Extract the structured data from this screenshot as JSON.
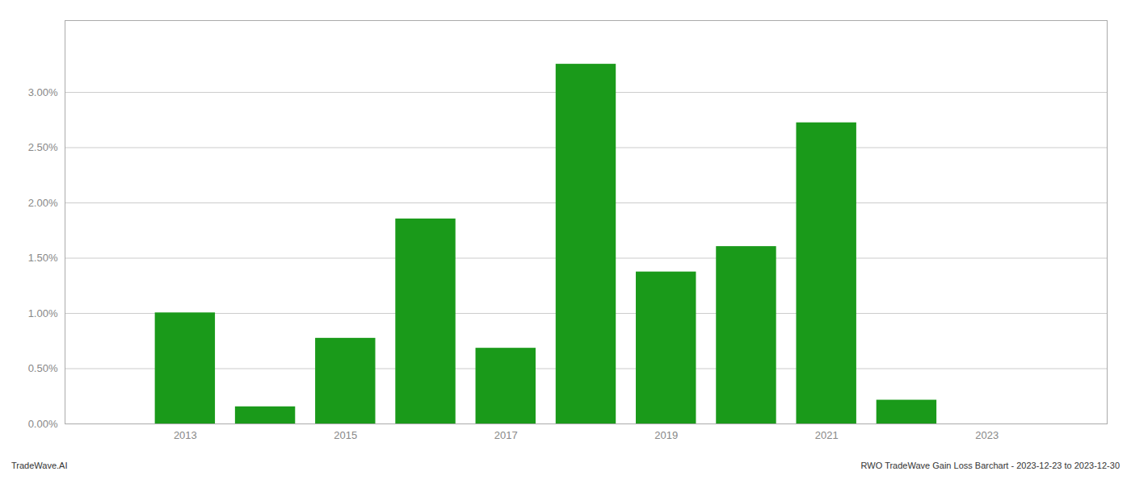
{
  "chart_data": {
    "type": "bar",
    "x": [
      2013,
      2014,
      2015,
      2016,
      2017,
      2018,
      2019,
      2020,
      2021,
      2022,
      2023
    ],
    "values": [
      0.01005,
      0.00155,
      0.00775,
      0.01855,
      0.00685,
      0.03255,
      0.01375,
      0.01605,
      0.02725,
      0.00215,
      0.0
    ],
    "color": "#1a9a1a",
    "xlim": [
      2011.5,
      2024.5
    ],
    "xticks": [
      2013,
      2015,
      2017,
      2019,
      2021,
      2023
    ],
    "ylim": [
      0,
      0.0365
    ],
    "yticks": [
      {
        "value": 0.0,
        "label": "0.00%"
      },
      {
        "value": 0.005,
        "label": "0.50%"
      },
      {
        "value": 0.01,
        "label": "1.00%"
      },
      {
        "value": 0.015,
        "label": "1.50%"
      },
      {
        "value": 0.02,
        "label": "2.00%"
      },
      {
        "value": 0.025,
        "label": "2.50%"
      },
      {
        "value": 0.03,
        "label": "3.00%"
      }
    ],
    "grid": true,
    "annotations": [
      "TradeWave.AI",
      "RWO TradeWave Gain Loss Barchart - 2023-12-23 to 2023-12-30"
    ]
  }
}
